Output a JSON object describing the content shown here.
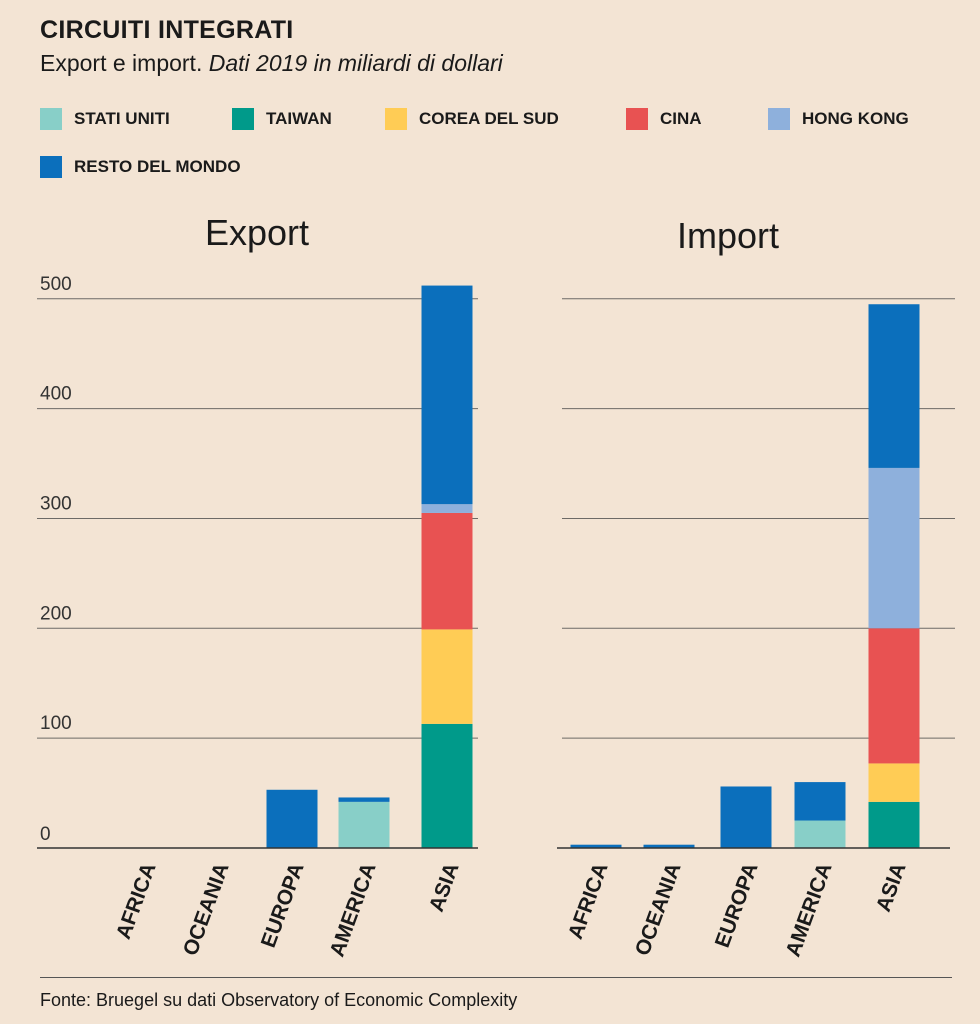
{
  "header": {
    "title": "CIRCUITI INTEGRATI",
    "subtitle_main": "Export e import.",
    "subtitle_italic": "Dati 2019 in miliardi di dollari"
  },
  "legend": [
    {
      "label": "STATI UNITI",
      "color": "#88cfc8"
    },
    {
      "label": "TAIWAN",
      "color": "#009a8a"
    },
    {
      "label": "COREA DEL SUD",
      "color": "#ffcc55"
    },
    {
      "label": "CINA",
      "color": "#e85252"
    },
    {
      "label": "HONG KONG",
      "color": "#8eb0dc"
    },
    {
      "label": "RESTO DEL MONDO",
      "color": "#0b6fbc"
    }
  ],
  "chart_data": [
    {
      "type": "bar",
      "stacked": true,
      "title": "Export",
      "categories": [
        "AFRICA",
        "OCEANIA",
        "EUROPA",
        "AMERICA",
        "ASIA"
      ],
      "yticks": [
        0,
        100,
        200,
        300,
        400,
        500
      ],
      "ylim": [
        0,
        520
      ],
      "series": [
        {
          "name": "STATI UNITI",
          "values": [
            0,
            0,
            0,
            42,
            0
          ]
        },
        {
          "name": "TAIWAN",
          "values": [
            0,
            0,
            0,
            0,
            113
          ]
        },
        {
          "name": "COREA DEL SUD",
          "values": [
            0,
            0,
            0,
            0,
            86
          ]
        },
        {
          "name": "CINA",
          "values": [
            0,
            0,
            0,
            0,
            106
          ]
        },
        {
          "name": "HONG KONG",
          "values": [
            0,
            0,
            0,
            0,
            8
          ]
        },
        {
          "name": "RESTO DEL MONDO",
          "values": [
            0,
            0,
            53,
            4,
            199
          ]
        }
      ]
    },
    {
      "type": "bar",
      "stacked": true,
      "title": "Import",
      "categories": [
        "AFRICA",
        "OCEANIA",
        "EUROPA",
        "AMERICA",
        "ASIA"
      ],
      "yticks": [
        0,
        100,
        200,
        300,
        400,
        500
      ],
      "ylim": [
        0,
        520
      ],
      "series": [
        {
          "name": "STATI UNITI",
          "values": [
            0,
            0,
            0,
            25,
            0
          ]
        },
        {
          "name": "TAIWAN",
          "values": [
            0,
            0,
            0,
            0,
            42
          ]
        },
        {
          "name": "COREA DEL SUD",
          "values": [
            0,
            0,
            0,
            0,
            35
          ]
        },
        {
          "name": "CINA",
          "values": [
            0,
            0,
            0,
            0,
            123
          ]
        },
        {
          "name": "HONG KONG",
          "values": [
            0,
            0,
            0,
            0,
            146
          ]
        },
        {
          "name": "RESTO DEL MONDO",
          "values": [
            3,
            3,
            56,
            35,
            149
          ]
        }
      ]
    }
  ],
  "footer": {
    "source": "Fonte: Bruegel su dati Observatory of Economic  Complexity"
  }
}
